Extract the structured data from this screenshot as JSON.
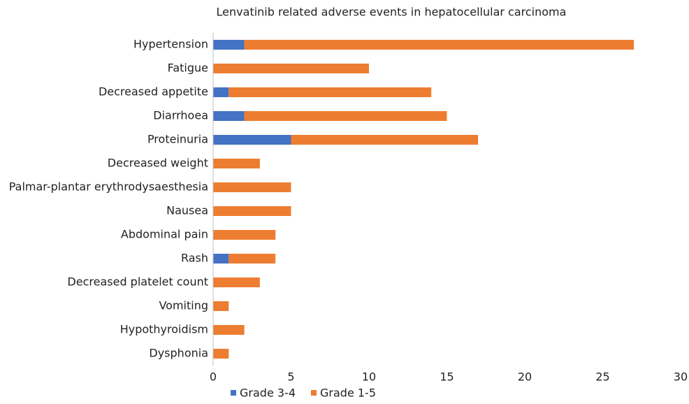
{
  "chart_data": {
    "type": "stacked-barh",
    "title": "Lenvatinib related adverse events in hepatocellular carcinoma",
    "categories": [
      "Hypertension",
      "Fatigue",
      "Decreased appetite",
      "Diarrhoea",
      "Proteinuria",
      "Decreased weight",
      "Palmar-plantar erythrodysaesthesia",
      "Nausea",
      "Abdominal pain",
      "Rash",
      "Decreased platelet count",
      "Vomiting",
      "Hypothyroidism",
      "Dysphonia"
    ],
    "series": [
      {
        "name": "Grade 3-4",
        "color": "#4472c4",
        "values": [
          2,
          0,
          1,
          2,
          5,
          0,
          0,
          0,
          0,
          1,
          0,
          0,
          0,
          0
        ]
      },
      {
        "name": "Grade 1-5",
        "color": "#ed7d31",
        "values": [
          25,
          10,
          13,
          13,
          12,
          3,
          5,
          5,
          4,
          3,
          3,
          1,
          2,
          1
        ]
      }
    ],
    "xlim": [
      0,
      30
    ],
    "xticks": [
      0,
      5,
      10,
      15,
      20,
      25,
      30
    ],
    "grid": false,
    "legend": "bottom"
  }
}
